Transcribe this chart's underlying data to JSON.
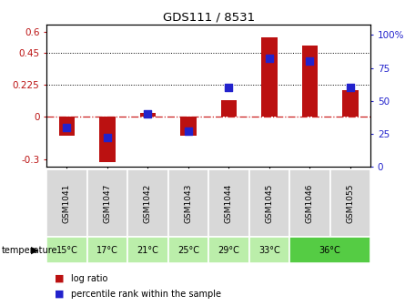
{
  "title": "GDS111 / 8531",
  "samples": [
    "GSM1041",
    "GSM1047",
    "GSM1042",
    "GSM1043",
    "GSM1044",
    "GSM1045",
    "GSM1046",
    "GSM1055"
  ],
  "log_ratio": [
    -0.13,
    -0.32,
    0.03,
    -0.13,
    0.12,
    0.56,
    0.5,
    0.19
  ],
  "percentile": [
    30,
    22,
    40,
    27,
    60,
    82,
    80,
    60
  ],
  "ylim_left": [
    -0.35,
    0.65
  ],
  "ylim_right": [
    0,
    108.0
  ],
  "yticks_left": [
    -0.3,
    0.0,
    0.225,
    0.45,
    0.6
  ],
  "yticks_right": [
    0,
    25,
    50,
    75,
    100
  ],
  "ytick_labels_left": [
    "-0.3",
    "0",
    "0.225",
    "0.45",
    "0.6"
  ],
  "ytick_labels_right": [
    "0",
    "25",
    "50",
    "75",
    "100%"
  ],
  "hlines": [
    0.225,
    0.45
  ],
  "bar_color": "#bb1111",
  "dot_color": "#2222cc",
  "zero_line_color": "#cc2222",
  "bar_width": 0.4,
  "dot_size": 28,
  "gsm_row_color": "#d8d8d8",
  "temp_colors_light": "#bbeeaa",
  "temp_colors_dark": "#55cc44",
  "temp_groups": [
    {
      "label": "15°C",
      "start": 0,
      "end": 0,
      "dark": false
    },
    {
      "label": "17°C",
      "start": 1,
      "end": 1,
      "dark": false
    },
    {
      "label": "21°C",
      "start": 2,
      "end": 2,
      "dark": false
    },
    {
      "label": "25°C",
      "start": 3,
      "end": 3,
      "dark": false
    },
    {
      "label": "29°C",
      "start": 4,
      "end": 4,
      "dark": false
    },
    {
      "label": "33°C",
      "start": 5,
      "end": 5,
      "dark": false
    },
    {
      "label": "36°C",
      "start": 6,
      "end": 7,
      "dark": true
    }
  ]
}
